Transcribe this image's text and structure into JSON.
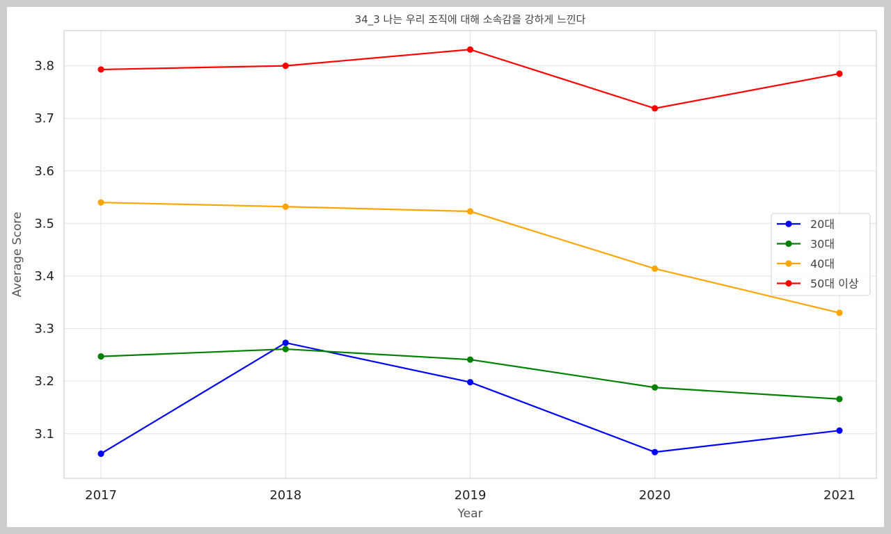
{
  "chart_data": {
    "type": "line",
    "title": "34_3 나는 우리 조직에 대해 소속감을 강하게 느낀다",
    "xlabel": "Year",
    "ylabel": "Average Score",
    "x": [
      "2017",
      "2018",
      "2019",
      "2020",
      "2021"
    ],
    "xlim": [
      2016.8,
      2021.2
    ],
    "ylim": [
      3.015,
      3.867
    ],
    "yticks": [
      "3.1",
      "3.2",
      "3.3",
      "3.4",
      "3.5",
      "3.6",
      "3.7",
      "3.8"
    ],
    "grid": true,
    "legend_position": "center-right",
    "series": [
      {
        "name": "20대",
        "color": "#0000ff",
        "values": [
          3.062,
          3.273,
          3.198,
          3.065,
          3.106
        ]
      },
      {
        "name": "30대",
        "color": "#008000",
        "values": [
          3.247,
          3.261,
          3.241,
          3.188,
          3.166
        ]
      },
      {
        "name": "40대",
        "color": "#ffa500",
        "values": [
          3.54,
          3.532,
          3.523,
          3.414,
          3.33
        ]
      },
      {
        "name": "50대 이상",
        "color": "#ff0000",
        "values": [
          3.793,
          3.8,
          3.831,
          3.719,
          3.785
        ]
      }
    ]
  }
}
